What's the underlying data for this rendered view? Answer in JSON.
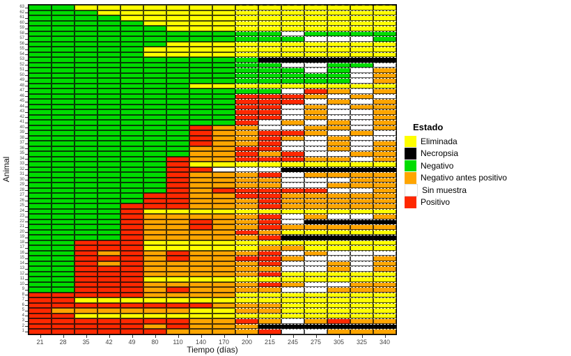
{
  "axes": {
    "x_title": "Tiempo (días)",
    "y_title": "Animal"
  },
  "legend": {
    "title": "Estado",
    "items": [
      {
        "label": "Eliminada",
        "color": "#FFFF00"
      },
      {
        "label": "Necropsia",
        "color": "#000000"
      },
      {
        "label": "Negativo",
        "color": "#00DC00"
      },
      {
        "label": "Negativo antes positivo",
        "color": "#FFA500"
      },
      {
        "label": "Sin muestra",
        "color": "#FFFFFF"
      },
      {
        "label": "Positivo",
        "color": "#FF2800"
      }
    ]
  },
  "chart_data": {
    "type": "heatmap",
    "title": "",
    "xlabel": "Tiempo (días)",
    "ylabel": "Animal",
    "x_categories": [
      "21",
      "28",
      "35",
      "42",
      "49",
      "80",
      "110",
      "140",
      "170",
      "200",
      "215",
      "245",
      "275",
      "305",
      "325",
      "340"
    ],
    "y_range": [
      1,
      63
    ],
    "legend_position": "right",
    "grid": "black solid lines left half, white dashed row lines over columns 10-16, black dashed top border over columns 10-16",
    "state_labels": {
      "G": "Negativo",
      "Y": "Eliminada",
      "O": "Negativo antes positivo",
      "R": "Positivo",
      "W": "Sin muestra",
      "K": "Necropsia"
    },
    "state_colors": {
      "G": "#00DC00",
      "Y": "#FFFF00",
      "O": "#FFA500",
      "R": "#FF2800",
      "W": "#FFFFFF",
      "K": "#000000"
    },
    "rows": {
      "63": "GGYYYYYYYYYYYYYY",
      "62": "GGGYYYYYYYYYYYYY",
      "61": "GGGGYYYYYYYYYYYY",
      "60": "GGGGGYYYYYYYYYYY",
      "59": "GGGGGGYYYYYYYYYY",
      "58": "GGGGGGGGGGGWGGGG",
      "57": "GGGGGGGGGGGGWWWG",
      "56": "GGGGGGYYYYYYYYYY",
      "55": "GGGGGYYYYYYYYYYY",
      "54": "GGGGGYYYYYYYYYYY",
      "53": "GGGGGGGGGGKKKKKK",
      "52": "GGGGGGGGGGGWWGGW",
      "51": "GGGGGGGGGGGGWGWO",
      "50": "GGGGGGGGGGGGGGWO",
      "49": "GGGGGGGGGGGGGGWO",
      "48": "GGGGGGGYYYYYYYYY",
      "47": "GGGGGGGGGGGWROWO",
      "46": "GGGGGGGGGRRROWOW",
      "45": "GGGGGGGGGRRRWOWO",
      "44": "GGGGGGGGGRRWOWOO",
      "43": "GGGGGGGGGRRWOWWO",
      "42": "GGGGGGGGGRRWOWWO",
      "41": "GGGGGGGGGRWOWOWO",
      "40": "GGGGGGGROOWWOOWO",
      "39": "GGGGGGGROORROWOW",
      "38": "GGGGGGGROOROWOWW",
      "37": "GGGGGGGROORWWOWO",
      "36": "GGGGGGGOORRWWOWO",
      "35": "GGGGGGGOORORWWOO",
      "34": "GGGGGGROORRROOWO",
      "33": "GGGGGGRYYYYYYYYY",
      "32": "GGGGGGRRWWWKKKKK",
      "31": "GGGGGGROOORWOOOO",
      "30": "GGGGGGROOOOWWWOO",
      "29": "GGGGGGROOOOWWOOO",
      "28": "GGGGGGRORRRRRWWO",
      "27": "GGGGGRROORROOOOO",
      "26": "GGGGGRROOOROOOOO",
      "25": "GGGGRRROOOROOOOO",
      "24": "GGGGRYYYYYYYYYYY",
      "23": "GGGGROOOOORWOWWO",
      "22": "GGGGROOROORWKKKK",
      "21": "GGGGROOROOROOOOO",
      "20": "GGGGROOOOROYYYYY",
      "19": "GGGGROOOOORKKKKK",
      "18": "GGRRRYYYYYYYYYYY",
      "17": "GGRRRYYYYYOOYYYY",
      "16": "GGROROROOORWOWWW",
      "15": "GGRRROROORROWWWO",
      "14": "GGROROOOOORWWOWO",
      "13": "GGRRROOOOOOWWOWO",
      "12": "GGRRROOOOORYYYYY",
      "11": "GGRRRYYYYYYYYYYY",
      "10": "GGRRROOOOOROWWOO",
      "9": "GGRRROROOOOWWOOO",
      "8": "RRRRROOOOYYYYYYY",
      "7": "RRYYYYYYYYYYYYYY",
      "6": "RRRRRRRROOOYYYYY",
      "5": "ROOOOOOYYOOYYYYY",
      "4": "RRYYYYYYYYYYYYYY",
      "3": "RRRRRRROOROWOROO",
      "2": "RRRRROROOOKKKKKK",
      "1": "RRRRRROOOORWWOOO"
    }
  }
}
